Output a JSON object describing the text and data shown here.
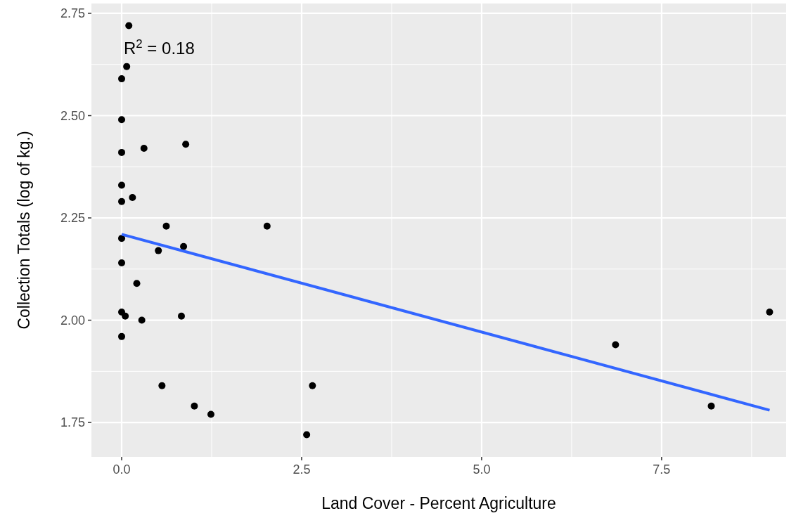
{
  "chart_data": {
    "type": "scatter",
    "xlabel": "Land Cover - Percent Agriculture",
    "ylabel": "Collection Totals (log of kg.)",
    "annotations": [
      "R$^{2}$ = 0.18"
    ],
    "xlim": [
      -0.42,
      9.23
    ],
    "ylim": [
      1.666,
      2.774
    ],
    "xticks": [
      {
        "value": 0,
        "label": "0.0"
      },
      2.5,
      {
        "value": 5,
        "label": "5.0"
      },
      7.5
    ],
    "yticks": [
      {
        "value": 1.75,
        "label": "1.75"
      },
      {
        "value": 2,
        "label": "2.00"
      },
      {
        "value": 2.25,
        "label": "2.25"
      },
      {
        "value": 2.5,
        "label": "2.50"
      },
      {
        "value": 2.75,
        "label": "2.75"
      }
    ],
    "grid": true,
    "series": [
      {
        "marker": "circle",
        "color": "#000000",
        "x": [
          0.1,
          0.07,
          0,
          0,
          0.31,
          0.89,
          0,
          0,
          0,
          0.15,
          0.62,
          2.02,
          0,
          0.51,
          0.86,
          0,
          0.21,
          0,
          0.05,
          0.28,
          0.83,
          0,
          0.56,
          2.65,
          1.01,
          1.24,
          2.57,
          6.86,
          8.19,
          9.0
        ],
        "values": [
          2.72,
          2.62,
          2.59,
          2.49,
          2.42,
          2.43,
          2.41,
          2.33,
          2.29,
          2.3,
          2.23,
          2.23,
          2.2,
          2.17,
          2.18,
          2.14,
          2.09,
          2.02,
          2.01,
          2.0,
          2.01,
          1.96,
          1.84,
          1.84,
          1.79,
          1.77,
          1.72,
          1.94,
          1.79,
          2.02
        ]
      },
      {
        "type": "line",
        "color": "#3366ff",
        "x": [
          0,
          9
        ],
        "values": [
          2.21,
          1.78
        ]
      }
    ]
  }
}
